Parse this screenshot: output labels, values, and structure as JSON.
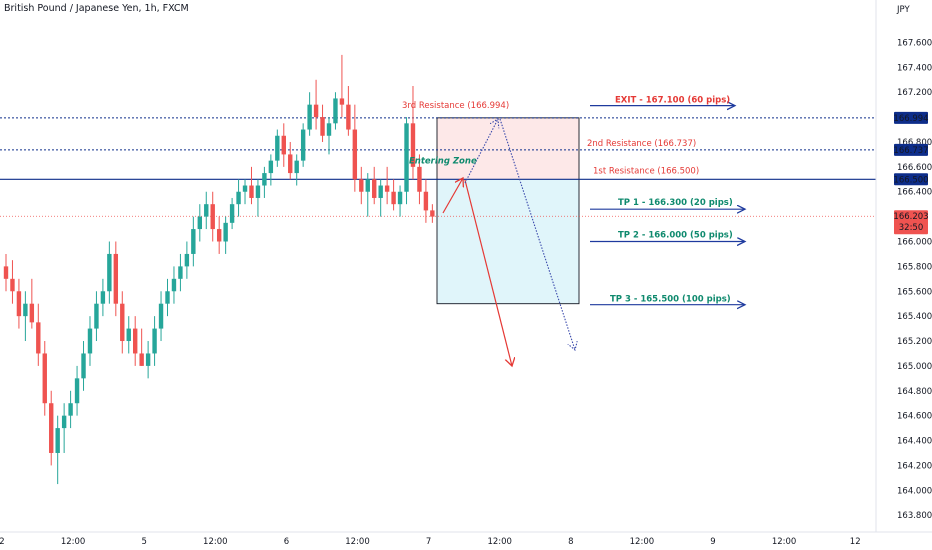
{
  "header": {
    "title": "British Pound / Japanese Yen, 1h, FXCM"
  },
  "chart_data": {
    "type": "candlestick",
    "currency": "JPY",
    "ylim": [
      163.7,
      167.9
    ],
    "y_ticks": [
      "167.600",
      "167.400",
      "167.200",
      "166.800",
      "166.600",
      "166.400",
      "166.000",
      "165.800",
      "165.600",
      "165.400",
      "165.200",
      "165.000",
      "164.800",
      "164.600",
      "164.400",
      "164.200",
      "164.000",
      "163.800"
    ],
    "x_ticks": [
      {
        "label": "2",
        "t": 0
      },
      {
        "label": "12:00",
        "t": 12
      },
      {
        "label": "5",
        "t": 24
      },
      {
        "label": "12:00",
        "t": 36
      },
      {
        "label": "6",
        "t": 48
      },
      {
        "label": "12:00",
        "t": 60
      },
      {
        "label": "7",
        "t": 72
      },
      {
        "label": "12:00",
        "t": 84
      },
      {
        "label": "8",
        "t": 96
      },
      {
        "label": "12:00",
        "t": 108
      },
      {
        "label": "9",
        "t": 120
      },
      {
        "label": "12:00",
        "t": 132
      },
      {
        "label": "12",
        "t": 144
      }
    ],
    "candles": [
      [
        165.8,
        165.9,
        165.6,
        165.7
      ],
      [
        165.7,
        165.85,
        165.5,
        165.6
      ],
      [
        165.6,
        165.7,
        165.3,
        165.4
      ],
      [
        165.4,
        165.6,
        165.2,
        165.5
      ],
      [
        165.5,
        165.7,
        165.3,
        165.35
      ],
      [
        165.35,
        165.5,
        165.0,
        165.1
      ],
      [
        165.1,
        165.2,
        164.6,
        164.7
      ],
      [
        164.7,
        164.8,
        164.2,
        164.3
      ],
      [
        164.3,
        164.6,
        164.05,
        164.5
      ],
      [
        164.5,
        164.7,
        164.3,
        164.6
      ],
      [
        164.6,
        164.8,
        164.5,
        164.7
      ],
      [
        164.7,
        165.0,
        164.6,
        164.9
      ],
      [
        164.9,
        165.2,
        164.8,
        165.1
      ],
      [
        165.1,
        165.4,
        165.0,
        165.3
      ],
      [
        165.3,
        165.6,
        165.2,
        165.5
      ],
      [
        165.5,
        165.7,
        165.4,
        165.6
      ],
      [
        165.6,
        166.0,
        165.5,
        165.9
      ],
      [
        165.9,
        166.0,
        165.4,
        165.5
      ],
      [
        165.5,
        165.6,
        165.1,
        165.2
      ],
      [
        165.2,
        165.4,
        165.1,
        165.3
      ],
      [
        165.3,
        165.4,
        165.0,
        165.1
      ],
      [
        165.1,
        165.3,
        165.0,
        165.0
      ],
      [
        165.0,
        165.2,
        164.9,
        165.1
      ],
      [
        165.1,
        165.4,
        165.0,
        165.3
      ],
      [
        165.3,
        165.6,
        165.2,
        165.5
      ],
      [
        165.5,
        165.7,
        165.4,
        165.6
      ],
      [
        165.6,
        165.8,
        165.5,
        165.7
      ],
      [
        165.7,
        165.9,
        165.6,
        165.8
      ],
      [
        165.8,
        166.0,
        165.7,
        165.9
      ],
      [
        165.9,
        166.2,
        165.8,
        166.1
      ],
      [
        166.1,
        166.3,
        166.0,
        166.2
      ],
      [
        166.2,
        166.4,
        166.1,
        166.3
      ],
      [
        166.3,
        166.4,
        166.0,
        166.1
      ],
      [
        166.1,
        166.2,
        165.9,
        166.0
      ],
      [
        166.0,
        166.2,
        165.9,
        166.15
      ],
      [
        166.15,
        166.35,
        166.1,
        166.3
      ],
      [
        166.3,
        166.5,
        166.2,
        166.4
      ],
      [
        166.4,
        166.5,
        166.3,
        166.45
      ],
      [
        166.45,
        166.6,
        166.3,
        166.35
      ],
      [
        166.35,
        166.5,
        166.2,
        166.45
      ],
      [
        166.45,
        166.6,
        166.35,
        166.55
      ],
      [
        166.55,
        166.7,
        166.45,
        166.65
      ],
      [
        166.65,
        166.9,
        166.6,
        166.85
      ],
      [
        166.85,
        166.95,
        166.6,
        166.7
      ],
      [
        166.7,
        166.8,
        166.5,
        166.55
      ],
      [
        166.55,
        166.7,
        166.45,
        166.65
      ],
      [
        166.65,
        166.95,
        166.6,
        166.9
      ],
      [
        166.9,
        167.2,
        166.85,
        167.1
      ],
      [
        167.1,
        167.3,
        166.9,
        167.0
      ],
      [
        167.0,
        167.1,
        166.8,
        166.85
      ],
      [
        166.85,
        167.0,
        166.7,
        166.95
      ],
      [
        166.95,
        167.2,
        166.9,
        167.15
      ],
      [
        167.15,
        167.5,
        167.0,
        167.1
      ],
      [
        167.1,
        167.25,
        166.85,
        166.9
      ],
      [
        166.9,
        167.1,
        166.4,
        166.5
      ],
      [
        166.5,
        166.6,
        166.3,
        166.4
      ],
      [
        166.4,
        166.55,
        166.2,
        166.5
      ],
      [
        166.5,
        166.6,
        166.3,
        166.35
      ],
      [
        166.35,
        166.5,
        166.2,
        166.45
      ],
      [
        166.45,
        166.6,
        166.3,
        166.4
      ],
      [
        166.4,
        166.5,
        166.25,
        166.3
      ],
      [
        166.3,
        166.45,
        166.2,
        166.4
      ],
      [
        166.4,
        167.0,
        166.3,
        166.95
      ],
      [
        166.95,
        167.25,
        166.5,
        166.6
      ],
      [
        166.6,
        166.7,
        166.3,
        166.4
      ],
      [
        166.4,
        166.5,
        166.15,
        166.25
      ],
      [
        166.25,
        166.3,
        166.15,
        166.2
      ]
    ],
    "horizontal_levels": [
      {
        "value": 166.994,
        "label": "166.994",
        "style": "dotted"
      },
      {
        "value": 166.737,
        "label": "166.737",
        "style": "dotted"
      },
      {
        "value": 166.5,
        "label": "166.500",
        "style": "solid"
      }
    ],
    "current_price": {
      "value": 166.203,
      "label": "166.203",
      "countdown": "32:50"
    },
    "annotations": {
      "exit": "EXIT - 167.100 (60 pips)",
      "third_resistance": "3rd Resistance (166.994)",
      "second_resistance": "2nd Resistance (166.737)",
      "first_resistance": "1st Resistance (166.500)",
      "entering_zone": "Entering Zone",
      "tp1": "TP 1 - 166.300 (20 pips)",
      "tp2": "TP 2 - 166.000 (50 pips)",
      "tp3": "TP 3 - 165.500 (100 pips)"
    },
    "colors": {
      "up": "#26a69a",
      "down": "#ef5350",
      "level_line": "#0d2d8a",
      "red_zone": "#fde8e8",
      "blue_zone": "#e0f5fa",
      "exit_text": "#e53935",
      "tp_text": "#0f8a6e",
      "arrow_blue": "#1e3a9e",
      "resistance_text": "#e53935"
    }
  }
}
